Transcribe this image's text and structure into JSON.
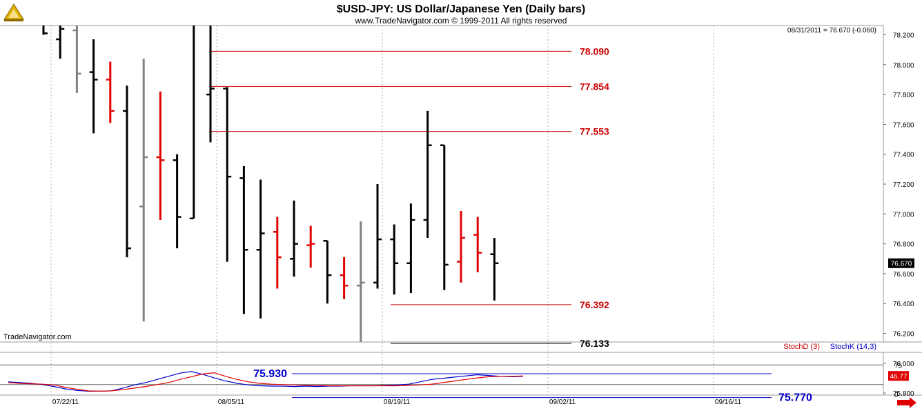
{
  "header": {
    "title": "$USD-JPY:  US Dollar/Japanese Yen  (Daily bars)",
    "copyright": "www.TradeNavigator.com © 1999-2011 All rights reserved",
    "last_quote": "08/31/2011 = 76.670 (-0.060)",
    "watermark": "TradeNavigator.com"
  },
  "colors": {
    "up_bar": "#000000",
    "down_bar": "#e00000",
    "neutral_bar": "#808080",
    "level_red": "#cc0000",
    "level_black": "#000000",
    "level_blue": "#0000cc",
    "stoch_d": "#e00000",
    "stoch_k": "#0000cc",
    "grid": "#b0b0b0"
  },
  "chart_data": [
    {
      "type": "ohlc",
      "name": "price",
      "ylim": [
        75.66,
        78.28
      ],
      "yticks": [
        "78.200",
        "78.000",
        "77.800",
        "77.600",
        "77.400",
        "77.200",
        "77.000",
        "76.800",
        "76.600",
        "76.400",
        "76.200",
        "76.000",
        "75.800"
      ],
      "x_tick_labels": [
        "07/22/11",
        "08/05/11",
        "08/19/11",
        "09/02/11",
        "09/16/11"
      ],
      "last_price_label": "76.670",
      "bars": [
        {
          "date": "07/20/11",
          "o": 78.28,
          "h": 78.3,
          "l": 78.2,
          "c": 78.21,
          "color": "up"
        },
        {
          "date": "07/21/11",
          "o": 78.17,
          "h": 78.3,
          "l": 78.04,
          "c": 78.24,
          "color": "up"
        },
        {
          "date": "07/22/11",
          "o": 78.23,
          "h": 78.3,
          "l": 77.81,
          "c": 77.94,
          "color": "neutral"
        },
        {
          "date": "07/25/11",
          "o": 77.95,
          "h": 78.17,
          "l": 77.54,
          "c": 77.9,
          "color": "up"
        },
        {
          "date": "07/26/11",
          "o": 77.9,
          "h": 78.02,
          "l": 77.61,
          "c": 77.69,
          "color": "down"
        },
        {
          "date": "07/27/11",
          "o": 77.69,
          "h": 77.86,
          "l": 76.71,
          "c": 76.77,
          "color": "up"
        },
        {
          "date": "07/28/11",
          "o": 77.05,
          "h": 78.04,
          "l": 76.28,
          "c": 77.38,
          "color": "neutral"
        },
        {
          "date": "07/29/11",
          "o": 77.38,
          "h": 77.82,
          "l": 76.96,
          "c": 77.36,
          "color": "down"
        },
        {
          "date": "08/01/11",
          "o": 77.36,
          "h": 77.4,
          "l": 76.77,
          "c": 76.98,
          "color": "up"
        },
        {
          "date": "08/02/11",
          "o": 76.97,
          "h": 78.3,
          "l": 76.97,
          "c": 78.3,
          "color": "up"
        },
        {
          "date": "08/03/11",
          "o": 77.8,
          "h": 78.3,
          "l": 77.48,
          "c": 77.84,
          "color": "up"
        },
        {
          "date": "08/04/11",
          "o": 77.84,
          "h": 77.85,
          "l": 76.68,
          "c": 77.25,
          "color": "up"
        },
        {
          "date": "08/05/11",
          "o": 77.24,
          "h": 77.32,
          "l": 76.33,
          "c": 76.76,
          "color": "up"
        },
        {
          "date": "08/08/11",
          "o": 76.76,
          "h": 77.23,
          "l": 76.3,
          "c": 76.87,
          "color": "up"
        },
        {
          "date": "08/09/11",
          "o": 76.88,
          "h": 76.98,
          "l": 76.5,
          "c": 76.71,
          "color": "down"
        },
        {
          "date": "08/10/11",
          "o": 76.7,
          "h": 77.09,
          "l": 76.58,
          "c": 76.8,
          "color": "up"
        },
        {
          "date": "08/11/11",
          "o": 76.79,
          "h": 76.92,
          "l": 76.64,
          "c": 76.8,
          "color": "down"
        },
        {
          "date": "08/12/11",
          "o": 76.82,
          "h": 76.82,
          "l": 76.4,
          "c": 76.59,
          "color": "up"
        },
        {
          "date": "08/15/11",
          "o": 76.59,
          "h": 76.71,
          "l": 76.43,
          "c": 76.52,
          "color": "down"
        },
        {
          "date": "08/16/11",
          "o": 76.52,
          "h": 76.95,
          "l": 75.93,
          "c": 76.54,
          "color": "neutral"
        },
        {
          "date": "08/17/11",
          "o": 76.54,
          "h": 77.2,
          "l": 76.5,
          "c": 76.83,
          "color": "up"
        },
        {
          "date": "08/18/11",
          "o": 76.83,
          "h": 76.93,
          "l": 76.46,
          "c": 76.67,
          "color": "up"
        },
        {
          "date": "08/19/11",
          "o": 76.67,
          "h": 77.07,
          "l": 76.47,
          "c": 76.96,
          "color": "up"
        },
        {
          "date": "08/22/11",
          "o": 76.96,
          "h": 77.69,
          "l": 76.84,
          "c": 77.46,
          "color": "up"
        },
        {
          "date": "08/23/11",
          "o": 77.46,
          "h": 77.46,
          "l": 76.49,
          "c": 76.66,
          "color": "up"
        },
        {
          "date": "08/24/11",
          "o": 76.68,
          "h": 77.02,
          "l": 76.54,
          "c": 76.84,
          "color": "down"
        },
        {
          "date": "08/25/11",
          "o": 76.86,
          "h": 76.98,
          "l": 76.61,
          "c": 76.74,
          "color": "down"
        },
        {
          "date": "08/26/11",
          "o": 76.73,
          "h": 76.84,
          "l": 76.42,
          "c": 76.67,
          "color": "up"
        }
      ]
    },
    {
      "type": "line",
      "name": "stochastic",
      "ylim": [
        0,
        100
      ],
      "yticks": [
        "75",
        "0"
      ],
      "legend_d": "StochD (3)",
      "legend_k": "StochK (14,3)",
      "last_value_label": "46.77",
      "series_d": [
        30,
        28,
        27,
        26,
        24,
        18,
        13,
        9,
        8,
        9,
        12,
        16,
        20,
        25,
        30,
        38,
        45,
        52,
        55,
        46,
        38,
        32,
        28,
        26,
        25,
        24,
        23,
        23,
        22,
        22,
        22,
        22,
        22,
        22,
        22,
        23,
        24,
        26,
        30,
        34,
        38,
        42,
        45,
        46,
        46,
        47
      ],
      "series_k": [
        32,
        30,
        28,
        25,
        20,
        14,
        10,
        8,
        8,
        9,
        16,
        24,
        30,
        38,
        46,
        54,
        58,
        51,
        42,
        34,
        28,
        24,
        22,
        21,
        21,
        20,
        21,
        20,
        21,
        21,
        22,
        22,
        22,
        23,
        24,
        26,
        32,
        38,
        41,
        44,
        47,
        50,
        48,
        46,
        45,
        46
      ]
    }
  ],
  "levels": [
    {
      "value": 78.09,
      "label": "78.090",
      "color": "red"
    },
    {
      "value": 77.854,
      "label": "77.854",
      "color": "red"
    },
    {
      "value": 77.553,
      "label": "77.553",
      "color": "red"
    },
    {
      "value": 76.392,
      "label": "76.392",
      "color": "red"
    },
    {
      "value": 76.133,
      "label": "76.133",
      "color": "black"
    },
    {
      "value": 75.93,
      "label": "75.930",
      "color": "blue"
    },
    {
      "value": 75.77,
      "label": "75.770",
      "color": "blue"
    }
  ]
}
